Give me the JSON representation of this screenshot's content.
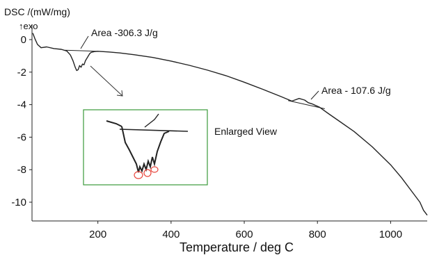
{
  "chart_data": {
    "type": "line",
    "xlabel": "Temperature / deg C",
    "ylabel": "DSC /(mW/mg)",
    "exo_label": "↑exo",
    "xlim": [
      20,
      1100
    ],
    "ylim": [
      -11,
      0.6
    ],
    "xticks": [
      200,
      400,
      600,
      800,
      1000
    ],
    "yticks": [
      0,
      -2,
      -4,
      -6,
      -8,
      -10
    ],
    "grid": false,
    "series": [
      {
        "x": [
          22,
          28,
          35,
          45,
          60,
          80,
          100,
          115,
          125,
          132,
          138,
          142,
          146,
          150,
          154,
          158,
          162,
          166,
          170,
          174,
          178,
          182,
          190,
          200,
          230,
          260,
          300,
          350,
          400,
          450,
          500,
          550,
          600,
          650,
          700,
          730,
          750,
          765,
          775,
          785,
          795,
          805,
          830,
          860,
          900,
          950,
          1000,
          1030,
          1060,
          1080,
          1090,
          1100
        ],
        "y": [
          0.4,
          0.05,
          -0.3,
          -0.5,
          -0.45,
          -0.55,
          -0.6,
          -0.7,
          -0.95,
          -1.3,
          -1.7,
          -1.9,
          -1.85,
          -1.6,
          -1.7,
          -1.5,
          -1.55,
          -1.3,
          -1.15,
          -1.0,
          -0.85,
          -0.78,
          -0.74,
          -0.72,
          -0.76,
          -0.82,
          -0.93,
          -1.1,
          -1.32,
          -1.58,
          -1.88,
          -2.22,
          -2.62,
          -3.05,
          -3.5,
          -3.78,
          -3.62,
          -3.72,
          -3.88,
          -3.95,
          -4.05,
          -4.15,
          -4.55,
          -5.02,
          -5.65,
          -6.6,
          -7.7,
          -8.5,
          -9.4,
          -10.0,
          -10.5,
          -10.8
        ]
      }
    ],
    "peak_baselines": [
      {
        "x": [
          110,
          200
        ],
        "y": [
          -0.65,
          -0.72
        ]
      },
      {
        "x": [
          720,
          820
        ],
        "y": [
          -3.75,
          -4.25
        ]
      }
    ],
    "annotations": [
      {
        "text": "Area -306.3 J/g"
      },
      {
        "text": "Area - 107.6 J/g"
      }
    ],
    "inset": {
      "label": "Enlarged View"
    }
  },
  "colors": {
    "line": "#222222",
    "inset_border": "#3a9a3a",
    "inset_label": "#2e8b2e",
    "highlight": "#e8453c",
    "axis": "#222222"
  }
}
